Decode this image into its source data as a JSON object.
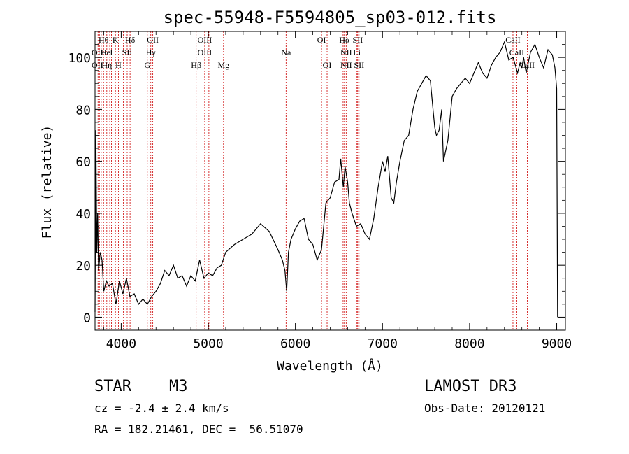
{
  "chart_data": {
    "type": "line",
    "title": "spec-55948-F5594805_sp03-012.fits",
    "xlabel": "Wavelength (Å)",
    "ylabel": "Flux (relative)",
    "xlim": [
      3700,
      9100
    ],
    "ylim": [
      -5,
      110
    ],
    "x_ticks": [
      4000,
      5000,
      6000,
      7000,
      8000,
      9000
    ],
    "x_tick_labels": [
      "4000",
      "5000",
      "6000",
      "7000",
      "8000",
      "9000"
    ],
    "y_ticks": [
      0,
      20,
      40,
      60,
      80,
      100
    ],
    "y_tick_labels": [
      "0",
      "20",
      "40",
      "60",
      "80",
      "100"
    ],
    "grid": false,
    "series": [
      {
        "name": "spectrum",
        "x": [
          3700,
          3710,
          3720,
          3730,
          3740,
          3760,
          3780,
          3800,
          3830,
          3860,
          3900,
          3940,
          3980,
          4020,
          4060,
          4100,
          4150,
          4200,
          4250,
          4300,
          4350,
          4400,
          4450,
          4500,
          4550,
          4600,
          4650,
          4700,
          4750,
          4800,
          4850,
          4900,
          4950,
          5000,
          5050,
          5100,
          5150,
          5200,
          5300,
          5400,
          5500,
          5600,
          5700,
          5800,
          5850,
          5880,
          5900,
          5920,
          5950,
          6000,
          6050,
          6100,
          6150,
          6200,
          6250,
          6300,
          6350,
          6400,
          6450,
          6500,
          6520,
          6550,
          6570,
          6600,
          6620,
          6650,
          6700,
          6750,
          6800,
          6850,
          6900,
          6950,
          7000,
          7030,
          7060,
          7100,
          7130,
          7160,
          7200,
          7250,
          7300,
          7350,
          7400,
          7450,
          7500,
          7550,
          7580,
          7600,
          7620,
          7650,
          7680,
          7700,
          7750,
          7800,
          7850,
          7900,
          7950,
          8000,
          8050,
          8100,
          8150,
          8200,
          8250,
          8300,
          8350,
          8400,
          8450,
          8500,
          8550,
          8580,
          8600,
          8620,
          8650,
          8680,
          8700,
          8750,
          8800,
          8850,
          8900,
          8950,
          8980,
          9000,
          9010
        ],
        "y": [
          2,
          72,
          25,
          40,
          18,
          25,
          22,
          10,
          14,
          12,
          13,
          5,
          14,
          9,
          15,
          8,
          9,
          5,
          7,
          5,
          8,
          10,
          13,
          18,
          16,
          20,
          15,
          16,
          12,
          16,
          14,
          22,
          15,
          17,
          16,
          19,
          20,
          25,
          28,
          30,
          32,
          36,
          33,
          26,
          22,
          18,
          10,
          25,
          30,
          34,
          37,
          38,
          30,
          28,
          22,
          26,
          44,
          46,
          52,
          53,
          61,
          50,
          58,
          52,
          44,
          40,
          35,
          36,
          32,
          30,
          38,
          50,
          60,
          56,
          62,
          46,
          44,
          52,
          60,
          68,
          70,
          80,
          87,
          90,
          93,
          91,
          80,
          73,
          70,
          72,
          80,
          60,
          68,
          85,
          88,
          90,
          92,
          90,
          94,
          98,
          94,
          92,
          97,
          100,
          102,
          106,
          99,
          100,
          94,
          98,
          96,
          100,
          94,
          99,
          102,
          105,
          100,
          96,
          103,
          101,
          96,
          88,
          0
        ]
      }
    ],
    "lines": [
      {
        "x": 3734,
        "top": "OII",
        "bot": ""
      },
      {
        "x": 3750,
        "top": "OII",
        "bot": "OII"
      },
      {
        "x": 3771,
        "top": "",
        "bot": ""
      },
      {
        "x": 3798,
        "top": "",
        "bot": ""
      },
      {
        "x": 3835,
        "top": "",
        "bot": ""
      },
      {
        "x": 3869,
        "top": "",
        "bot": ""
      },
      {
        "x": 3889,
        "top": "",
        "bot": ""
      },
      {
        "x": 3934,
        "top": "",
        "bot": ""
      },
      {
        "x": 3968,
        "top": "",
        "bot": ""
      },
      {
        "x": 4026,
        "top": "",
        "bot": ""
      },
      {
        "x": 4069,
        "top": "",
        "bot": ""
      },
      {
        "x": 4102,
        "top": "",
        "bot": ""
      },
      {
        "x": 4300,
        "top": "",
        "bot": ""
      },
      {
        "x": 4340,
        "top": "",
        "bot": ""
      },
      {
        "x": 4363,
        "top": "",
        "bot": ""
      },
      {
        "x": 4861,
        "top": "",
        "bot": ""
      },
      {
        "x": 4959,
        "top": "",
        "bot": ""
      },
      {
        "x": 5007,
        "top": "",
        "bot": ""
      },
      {
        "x": 5175,
        "top": "",
        "bot": ""
      },
      {
        "x": 5893,
        "top": "",
        "bot": ""
      },
      {
        "x": 6300,
        "top": "",
        "bot": ""
      },
      {
        "x": 6364,
        "top": "",
        "bot": ""
      },
      {
        "x": 6548,
        "top": "",
        "bot": ""
      },
      {
        "x": 6563,
        "top": "",
        "bot": ""
      },
      {
        "x": 6583,
        "top": "",
        "bot": ""
      },
      {
        "x": 6707,
        "top": "",
        "bot": ""
      },
      {
        "x": 6716,
        "top": "",
        "bot": ""
      },
      {
        "x": 6731,
        "top": "",
        "bot": ""
      },
      {
        "x": 8498,
        "top": "",
        "bot": ""
      },
      {
        "x": 8542,
        "top": "",
        "bot": ""
      },
      {
        "x": 8662,
        "top": "",
        "bot": ""
      }
    ],
    "line_labels": [
      {
        "text": "Hθ",
        "row": 0,
        "x": 3798
      },
      {
        "text": "K",
        "row": 0,
        "x": 3934
      },
      {
        "text": "Hδ",
        "row": 0,
        "x": 4102
      },
      {
        "text": "OII",
        "row": 0,
        "x": 4363
      },
      {
        "text": "OIII",
        "row": 0,
        "x": 4959
      },
      {
        "text": "OI",
        "row": 0,
        "x": 6300
      },
      {
        "text": "Hα",
        "row": 0,
        "x": 6563
      },
      {
        "text": "SII",
        "row": 0,
        "x": 6716
      },
      {
        "text": "CaII",
        "row": 0,
        "x": 8498
      },
      {
        "text": "OII",
        "row": 1,
        "x": 3727
      },
      {
        "text": "He",
        "row": 1,
        "x": 3820
      },
      {
        "text": "I",
        "row": 1,
        "x": 3888
      },
      {
        "text": "SII",
        "row": 1,
        "x": 4069
      },
      {
        "text": "Hγ",
        "row": 1,
        "x": 4340
      },
      {
        "text": "OIII",
        "row": 1,
        "x": 4959
      },
      {
        "text": "Na",
        "row": 1,
        "x": 5893
      },
      {
        "text": "NII",
        "row": 1,
        "x": 6583
      },
      {
        "text": "Li",
        "row": 1,
        "x": 6707
      },
      {
        "text": "CaII",
        "row": 1,
        "x": 8542
      },
      {
        "text": "OII",
        "row": 2,
        "x": 3727
      },
      {
        "text": "Hη",
        "row": 2,
        "x": 3835
      },
      {
        "text": "H",
        "row": 2,
        "x": 3968
      },
      {
        "text": "G",
        "row": 2,
        "x": 4300
      },
      {
        "text": "Hβ",
        "row": 2,
        "x": 4861
      },
      {
        "text": "Mg",
        "row": 2,
        "x": 5175
      },
      {
        "text": "OI",
        "row": 2,
        "x": 6364
      },
      {
        "text": "NII",
        "row": 2,
        "x": 6583
      },
      {
        "text": "SII",
        "row": 2,
        "x": 6731
      },
      {
        "text": "CaII",
        "row": 2,
        "x": 8662
      }
    ]
  },
  "info": {
    "object_class": "STAR",
    "subclass": "M3",
    "survey": "LAMOST DR3",
    "cz": "cz = -2.4 ± 2.4 km/s",
    "obs_date": "Obs-Date: 20120121",
    "coords": "RA = 182.21461, DEC =  56.51070"
  },
  "colors": {
    "line_marker": "#cc0000",
    "spectrum": "#000000"
  }
}
